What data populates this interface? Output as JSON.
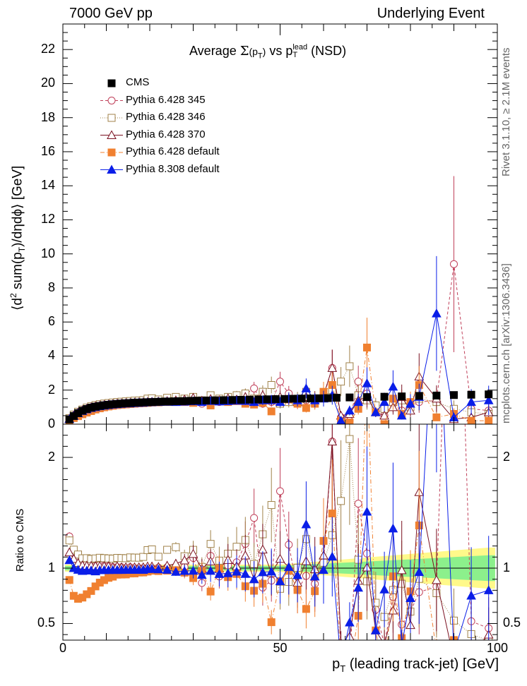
{
  "header": {
    "left": "7000 GeV pp",
    "right": "Underlying Event"
  },
  "side_text": {
    "rivet": "Rivet 3.1.10, ≥ 2.1M events",
    "mcplots": "mcplots.cern.ch [arXiv:1306.3436]"
  },
  "chart_data": [
    {
      "type": "scatter",
      "title": {
        "prefix": "Average ",
        "sigma": "Σ",
        "sigma_arg": "(p",
        "sigma_sub": "T",
        "sigma_close": ")",
        "vs": " vs p",
        "vs_sup": "lead",
        "vs_sub": "T",
        "suffix": " (NSD)"
      },
      "ylabel": {
        "a": "⟨d",
        "sup": "2",
        "b": " sum(p",
        "sub": "T",
        "c": ")/dηdϕ⟩ [GeV]"
      },
      "xlim": [
        0,
        100
      ],
      "ylim": [
        0,
        23.5
      ],
      "yticks": [
        "0",
        "2",
        "4",
        "6",
        "8",
        "10",
        "12",
        "14",
        "16",
        "18",
        "20",
        "22"
      ],
      "legend_position": "top-left",
      "legend": [
        "CMS",
        "Pythia 6.428 345",
        "Pythia 6.428 346",
        "Pythia 6.428 370",
        "Pythia 6.428 default",
        "Pythia 8.308 default"
      ],
      "series": [
        {
          "name": "CMS",
          "color": "#000000",
          "marker": "square-filled",
          "x": [
            1.5,
            2.5,
            3.5,
            4.5,
            5.5,
            6.5,
            7.5,
            8.5,
            9.5,
            10.5,
            11.5,
            12.5,
            13.5,
            14.5,
            15.5,
            16.5,
            17.5,
            18.5,
            19.5,
            20.5,
            21.5,
            22.5,
            23.5,
            24.5,
            25.5,
            26.5,
            27.5,
            28.5,
            29.5,
            31,
            33,
            35,
            37,
            39,
            41,
            43,
            45,
            47,
            49,
            51,
            53,
            55,
            57,
            59,
            61,
            63,
            66,
            70,
            74,
            78,
            82,
            86,
            90,
            94,
            98
          ],
          "y": [
            0.28,
            0.48,
            0.65,
            0.79,
            0.89,
            0.97,
            1.03,
            1.07,
            1.11,
            1.14,
            1.17,
            1.19,
            1.21,
            1.23,
            1.24,
            1.26,
            1.27,
            1.28,
            1.29,
            1.3,
            1.31,
            1.32,
            1.33,
            1.33,
            1.34,
            1.35,
            1.35,
            1.36,
            1.37,
            1.38,
            1.39,
            1.4,
            1.41,
            1.42,
            1.43,
            1.44,
            1.45,
            1.46,
            1.47,
            1.48,
            1.49,
            1.5,
            1.51,
            1.52,
            1.53,
            1.55,
            1.57,
            1.59,
            1.61,
            1.63,
            1.66,
            1.68,
            1.71,
            1.73,
            1.75
          ]
        },
        {
          "name": "Pythia 6.428 345",
          "color": "#c0405a",
          "marker": "circle-open",
          "line": "dashed",
          "x": [
            1.5,
            2.5,
            3.5,
            4.5,
            5.5,
            6.5,
            7.5,
            8.5,
            9.5,
            10.5,
            11.5,
            12.5,
            13.5,
            14.5,
            15.5,
            16.5,
            17.5,
            18.5,
            19.5,
            20.5,
            22,
            24,
            26,
            28,
            30,
            32,
            34,
            36,
            38,
            40,
            42,
            44,
            46,
            48,
            50,
            52,
            54,
            56,
            58,
            60,
            62,
            64,
            66,
            68,
            70,
            72,
            74,
            76,
            78,
            80,
            82,
            86,
            90,
            94,
            98
          ],
          "y": [
            0.36,
            0.55,
            0.7,
            0.82,
            0.92,
            1.0,
            1.05,
            1.1,
            1.13,
            1.16,
            1.18,
            1.2,
            1.22,
            1.23,
            1.25,
            1.26,
            1.27,
            1.28,
            1.29,
            1.3,
            1.32,
            1.34,
            1.35,
            1.37,
            1.5,
            1.2,
            1.55,
            1.3,
            1.45,
            1.5,
            1.75,
            2.1,
            1.2,
            1.3,
            2.5,
            1.8,
            1.2,
            1.4,
            1.3,
            1.6,
            3.3,
            0.4,
            0.2,
            2.5,
            1.8,
            1.0,
            0.5,
            1.2,
            0.8,
            1.0,
            1.3,
            1.4,
            9.4,
            0.9,
            0.8
          ]
        },
        {
          "name": "Pythia 6.428 346",
          "color": "#a0824a",
          "marker": "square-open",
          "line": "dotted",
          "x": [
            1.5,
            2.5,
            3.5,
            4.5,
            5.5,
            6.5,
            7.5,
            8.5,
            9.5,
            10.5,
            11.5,
            12.5,
            13.5,
            14.5,
            15.5,
            16.5,
            17.5,
            18.5,
            19.5,
            20.5,
            22,
            24,
            26,
            28,
            30,
            32,
            34,
            36,
            38,
            40,
            42,
            44,
            46,
            48,
            50,
            52,
            54,
            56,
            58,
            60,
            62,
            64,
            66,
            68,
            70,
            72,
            74,
            76,
            78,
            80,
            82,
            86,
            90,
            94,
            98
          ],
          "y": [
            0.35,
            0.56,
            0.73,
            0.86,
            0.97,
            1.05,
            1.12,
            1.17,
            1.21,
            1.24,
            1.27,
            1.3,
            1.32,
            1.34,
            1.36,
            1.38,
            1.39,
            1.41,
            1.5,
            1.52,
            1.45,
            1.55,
            1.6,
            1.5,
            1.6,
            1.4,
            1.7,
            1.5,
            1.6,
            1.7,
            1.8,
            1.5,
            1.9,
            2.3,
            1.2,
            1.3,
            1.5,
            1.9,
            1.4,
            1.6,
            2.0,
            2.5,
            3.4,
            1.7,
            1.4,
            1.1,
            0.9,
            1.3,
            1.4,
            1.0,
            1.5,
            1.3,
            0.9,
            0.7,
            0.6
          ]
        },
        {
          "name": "Pythia 6.428 370",
          "color": "#7a1020",
          "marker": "triangle-open",
          "line": "solid",
          "x": [
            1.5,
            2.5,
            3.5,
            4.5,
            5.5,
            6.5,
            7.5,
            8.5,
            9.5,
            10.5,
            11.5,
            12.5,
            13.5,
            14.5,
            15.5,
            16.5,
            17.5,
            18.5,
            19.5,
            20.5,
            22,
            24,
            26,
            28,
            30,
            32,
            34,
            36,
            38,
            40,
            42,
            44,
            46,
            48,
            50,
            52,
            54,
            56,
            58,
            60,
            62,
            64,
            66,
            68,
            70,
            72,
            74,
            76,
            78,
            80,
            82,
            86,
            90,
            94,
            98
          ],
          "y": [
            0.32,
            0.52,
            0.68,
            0.81,
            0.91,
            0.99,
            1.05,
            1.09,
            1.13,
            1.16,
            1.18,
            1.21,
            1.22,
            1.24,
            1.25,
            1.27,
            1.28,
            1.29,
            1.31,
            1.32,
            1.33,
            1.36,
            1.4,
            1.45,
            1.55,
            1.38,
            1.48,
            1.4,
            1.52,
            1.45,
            1.6,
            1.3,
            1.7,
            1.4,
            1.6,
            1.5,
            1.3,
            1.6,
            1.5,
            1.7,
            3.3,
            0.5,
            0.6,
            1.4,
            1.6,
            0.7,
            0.5,
            1.0,
            1.6,
            0.8,
            2.8,
            1.5,
            0.3,
            0.4,
            0.7
          ]
        },
        {
          "name": "Pythia 6.428 default",
          "color": "#f08030",
          "marker": "square-filled",
          "line": "dashdot",
          "x": [
            1.5,
            2.5,
            3.5,
            4.5,
            5.5,
            6.5,
            7.5,
            8.5,
            9.5,
            10.5,
            11.5,
            12.5,
            13.5,
            14.5,
            15.5,
            16.5,
            17.5,
            18.5,
            19.5,
            20.5,
            22,
            24,
            26,
            28,
            30,
            32,
            34,
            36,
            38,
            40,
            42,
            44,
            46,
            48,
            50,
            52,
            54,
            56,
            58,
            60,
            62,
            64,
            66,
            68,
            70,
            72,
            74,
            76,
            78,
            80,
            82,
            86,
            90,
            94,
            98
          ],
          "y": [
            0.25,
            0.36,
            0.47,
            0.58,
            0.68,
            0.77,
            0.86,
            0.93,
            0.99,
            1.04,
            1.08,
            1.12,
            1.14,
            1.16,
            1.18,
            1.2,
            1.22,
            1.23,
            1.25,
            1.27,
            1.28,
            1.3,
            1.32,
            1.3,
            1.25,
            1.35,
            1.1,
            1.4,
            1.3,
            1.35,
            1.2,
            1.15,
            1.25,
            0.75,
            1.3,
            1.45,
            1.2,
            0.95,
            1.2,
            1.9,
            2.3,
            0.2,
            0.1,
            0.9,
            4.5,
            0.7,
            0.0,
            1.5,
            0.6,
            1.3,
            2.3,
            0.4,
            0.6,
            0.2,
            0.2
          ]
        },
        {
          "name": "Pythia 8.308 default",
          "color": "#0a1ee8",
          "marker": "triangle-filled",
          "line": "solid",
          "x": [
            1.5,
            2.5,
            3.5,
            4.5,
            5.5,
            6.5,
            7.5,
            8.5,
            9.5,
            10.5,
            11.5,
            12.5,
            13.5,
            14.5,
            15.5,
            16.5,
            17.5,
            18.5,
            19.5,
            20.5,
            22,
            24,
            26,
            28,
            30,
            32,
            34,
            36,
            38,
            40,
            42,
            44,
            46,
            48,
            50,
            52,
            54,
            56,
            58,
            60,
            62,
            64,
            66,
            68,
            70,
            72,
            74,
            76,
            78,
            80,
            82,
            86,
            90,
            94,
            98
          ],
          "y": [
            0.3,
            0.48,
            0.64,
            0.77,
            0.87,
            0.95,
            1.0,
            1.05,
            1.09,
            1.12,
            1.15,
            1.17,
            1.19,
            1.21,
            1.22,
            1.24,
            1.25,
            1.26,
            1.28,
            1.29,
            1.3,
            1.31,
            1.3,
            1.32,
            1.34,
            1.3,
            1.36,
            1.33,
            1.35,
            1.38,
            1.36,
            1.3,
            1.4,
            1.42,
            1.3,
            1.5,
            1.4,
            2.1,
            1.4,
            1.5,
            1.7,
            0.2,
            0.8,
            1.3,
            2.4,
            0.7,
            1.3,
            2.2,
            0.5,
            1.2,
            1.6,
            6.5,
            0.4,
            1.3,
            1.4
          ]
        }
      ]
    },
    {
      "type": "scatter",
      "ylabel": "Ratio to CMS",
      "xlabel": {
        "a": "p",
        "sub": "T",
        "b": " (leading track-jet) [GeV]"
      },
      "xlim": [
        0,
        100
      ],
      "ylim": [
        0.35,
        2.3
      ],
      "xticks": [
        "0",
        "50",
        "100"
      ],
      "yticks": [
        "0.5",
        "1",
        "2"
      ],
      "band": "CMS uncertainty (green/yellow)"
    }
  ]
}
